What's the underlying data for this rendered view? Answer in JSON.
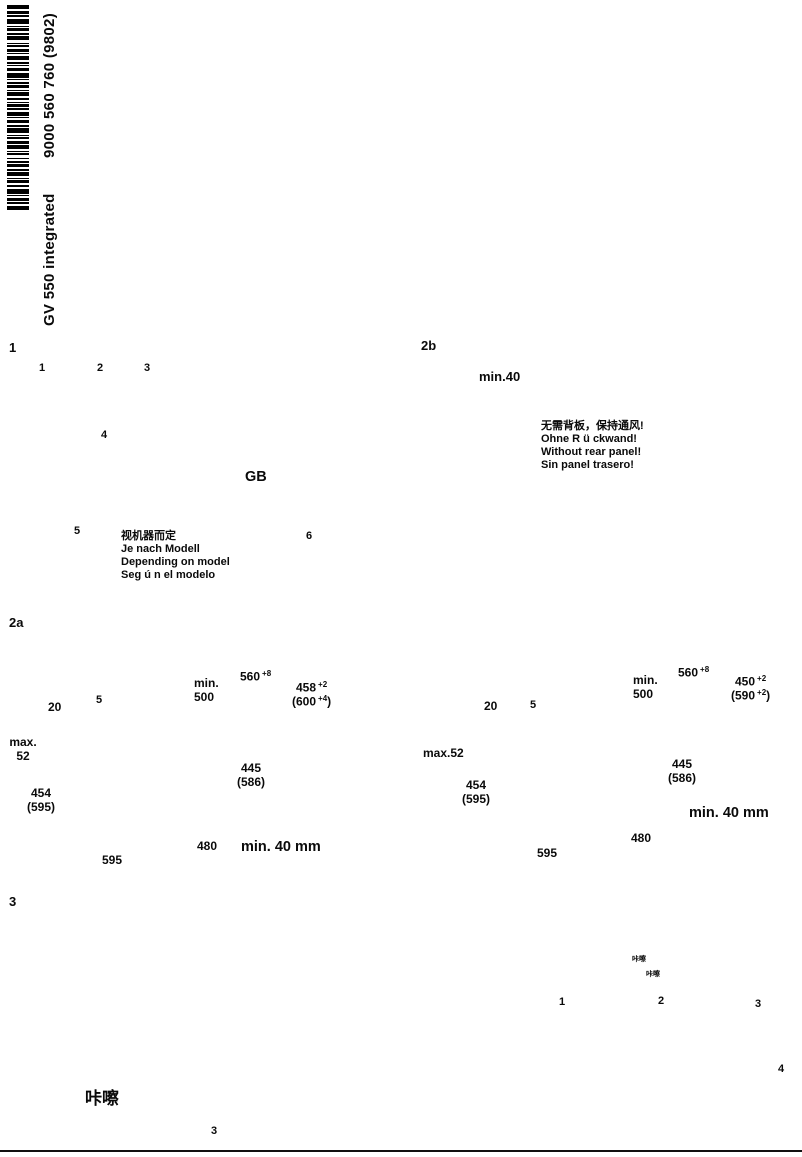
{
  "masthead": {
    "part_number": "9000 560 760 (9802)",
    "model_name": "GV 550 integrated",
    "barcode_pattern": [
      4,
      2,
      3,
      1,
      2,
      2,
      5,
      2,
      1,
      1,
      3,
      2,
      2,
      1,
      4,
      3,
      1,
      1,
      2,
      2,
      3,
      1,
      1,
      2,
      4,
      2,
      2,
      1,
      1,
      2,
      3,
      2,
      5,
      1,
      1,
      2,
      2,
      1,
      3,
      2,
      1,
      1,
      4,
      2,
      2,
      2,
      1,
      1,
      3,
      1,
      2,
      2,
      4,
      1,
      1,
      2,
      3,
      2,
      2,
      1,
      5,
      2,
      1,
      1,
      2,
      2,
      3,
      1,
      4,
      2,
      1,
      1,
      2,
      3,
      1,
      2,
      2,
      1,
      3,
      2,
      2,
      1,
      4,
      2,
      1,
      1,
      3,
      2,
      2,
      2,
      5,
      1,
      1,
      2,
      3,
      1,
      2,
      2,
      4,
      2
    ]
  },
  "section1": {
    "label": "1",
    "steps": [
      "1",
      "2",
      "3",
      "4",
      "5",
      "6"
    ],
    "region_code": "GB",
    "model_note_lines": [
      "视机器而定",
      "Je nach Modell",
      "Depending on model",
      "Seg ú n el modelo"
    ]
  },
  "section2b": {
    "label": "2b",
    "min_gap": "min.40",
    "note_lines": [
      "无需背板，保持通风!",
      "Ohne R ü ckwand!",
      "Without rear panel!",
      "Sin panel trasero!"
    ]
  },
  "section2a": {
    "label": "2a",
    "left": {
      "niche_min_lines": [
        "min.",
        "500"
      ],
      "width_top": {
        "base": "560",
        "sup": "+8"
      },
      "depth": {
        "base": "458",
        "sup": "+2"
      },
      "depth_alt": {
        "base": "(600",
        "sup": "+4",
        "close": ")"
      },
      "gap_top": "20",
      "gap_side": "5",
      "max_lines": [
        "max.",
        "52"
      ],
      "inner_lines": [
        "445",
        "(586)"
      ],
      "door_lines": [
        "454",
        "(595)"
      ],
      "width_bottom": "480",
      "vent": "min. 40 mm",
      "door_width": "595"
    },
    "right": {
      "niche_min_lines": [
        "min.",
        "500"
      ],
      "width_top": {
        "base": "560",
        "sup": "+8"
      },
      "depth": {
        "base": "450",
        "sup": "+2"
      },
      "depth_alt": {
        "base": "(590",
        "sup": "+2",
        "close": ")"
      },
      "gap_top": "20",
      "gap_side": "5",
      "max_line": "max.52",
      "inner_lines": [
        "445",
        "(586)"
      ],
      "door_lines": [
        "454",
        "(595)"
      ],
      "vent": "min. 40 mm",
      "width_bottom": "480",
      "door_width": "595"
    }
  },
  "section3": {
    "label": "3",
    "click_small_1": "咔嚓",
    "click_small_2": "咔嚓",
    "steps": [
      "1",
      "2",
      "3",
      "4"
    ],
    "click_large": "咔嚓",
    "footer_step": "3"
  }
}
